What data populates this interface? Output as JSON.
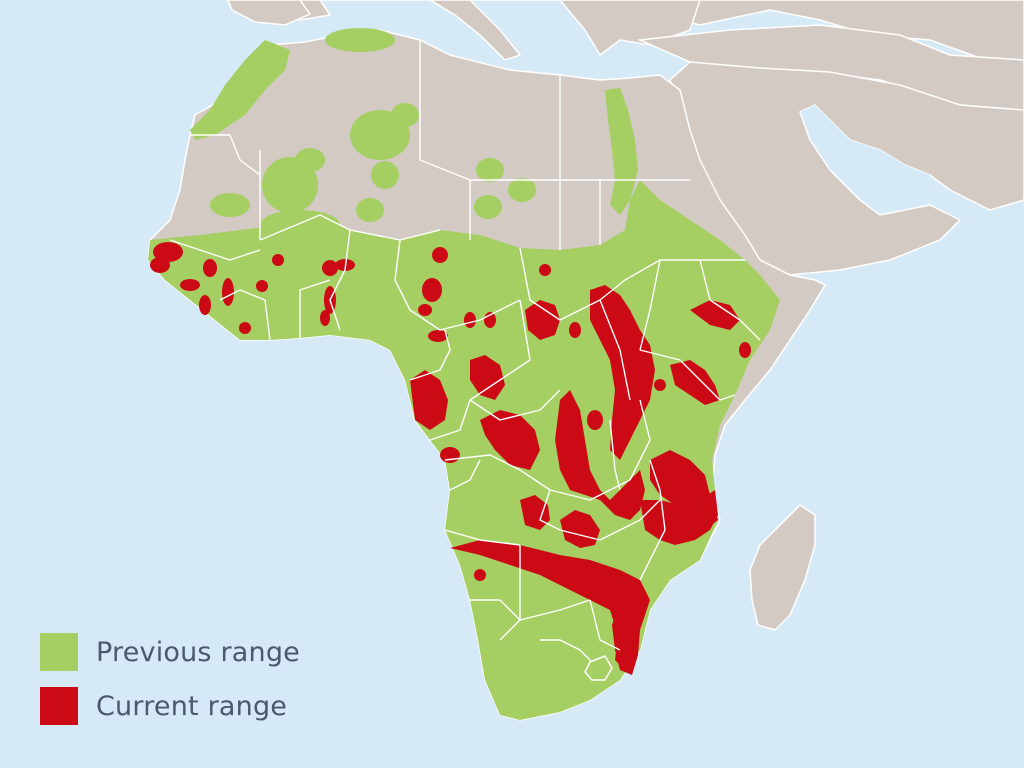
{
  "map": {
    "colors": {
      "water": "#d6e9f7",
      "land": "#d3cbc3",
      "previous_range": "#a5cf62",
      "current_range": "#cc0a16",
      "borders": "#ffffff"
    }
  },
  "legend": {
    "items": [
      {
        "label": "Previous range",
        "color": "#a5cf62"
      },
      {
        "label": "Current range",
        "color": "#cc0a16"
      }
    ]
  }
}
